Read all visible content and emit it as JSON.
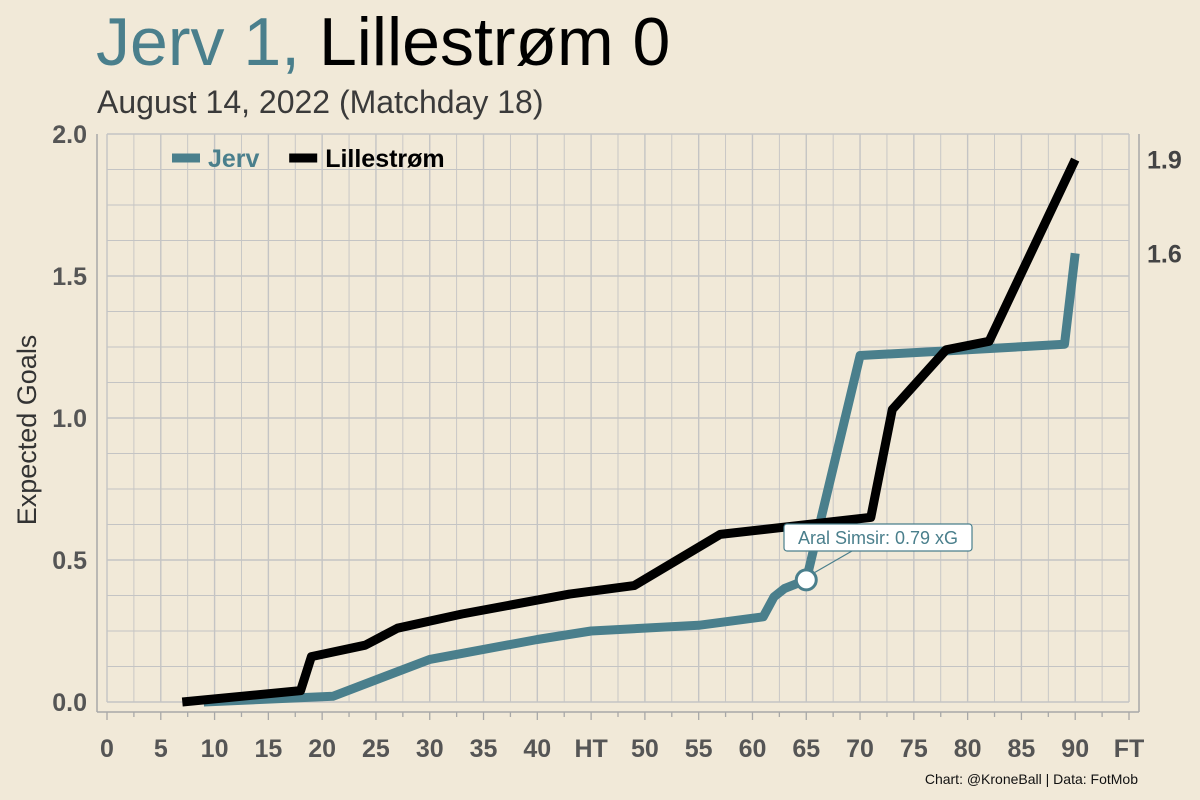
{
  "header": {
    "home_part": "Jerv 1,",
    "away_part": "Lillestrøm 0",
    "subtitle": "August 14, 2022 (Matchday 18)"
  },
  "caption": "Chart: @KroneBall | Data: FotMob",
  "colors": {
    "Jerv": "#4a7f8c",
    "Lillestrøm": "#000000",
    "background": "#f1e9d8",
    "grid": "#bdbdbd"
  },
  "chart_data": {
    "type": "line",
    "ylabel": "Expected Goals",
    "xlabel": "",
    "xlim": [
      0,
      95
    ],
    "ylim": [
      0,
      2.0
    ],
    "x_ticks": [
      {
        "x": 0,
        "label": "0"
      },
      {
        "x": 5,
        "label": "5"
      },
      {
        "x": 10,
        "label": "10"
      },
      {
        "x": 15,
        "label": "15"
      },
      {
        "x": 20,
        "label": "20"
      },
      {
        "x": 25,
        "label": "25"
      },
      {
        "x": 30,
        "label": "30"
      },
      {
        "x": 35,
        "label": "35"
      },
      {
        "x": 40,
        "label": "40"
      },
      {
        "x": 45,
        "label": "HT"
      },
      {
        "x": 50,
        "label": "50"
      },
      {
        "x": 55,
        "label": "55"
      },
      {
        "x": 60,
        "label": "60"
      },
      {
        "x": 65,
        "label": "65"
      },
      {
        "x": 70,
        "label": "70"
      },
      {
        "x": 75,
        "label": "75"
      },
      {
        "x": 80,
        "label": "80"
      },
      {
        "x": 85,
        "label": "85"
      },
      {
        "x": 90,
        "label": "90"
      },
      {
        "x": 95,
        "label": "FT"
      }
    ],
    "y_ticks": [
      "0.0",
      "0.5",
      "1.0",
      "1.5",
      "2.0"
    ],
    "legend": {
      "placement": "top-left",
      "entries": [
        "Jerv",
        "Lillestrøm"
      ]
    },
    "series": [
      {
        "name": "Jerv",
        "end_label": "1.6",
        "points": [
          [
            9,
            0.0
          ],
          [
            21,
            0.02
          ],
          [
            30,
            0.15
          ],
          [
            40,
            0.22
          ],
          [
            45,
            0.25
          ],
          [
            55,
            0.27
          ],
          [
            61,
            0.3
          ],
          [
            62,
            0.37
          ],
          [
            63,
            0.4
          ],
          [
            65,
            0.43
          ],
          [
            70,
            1.22
          ],
          [
            80,
            1.24
          ],
          [
            89,
            1.26
          ],
          [
            90,
            1.58
          ]
        ]
      },
      {
        "name": "Lillestrøm",
        "end_label": "1.9",
        "points": [
          [
            7,
            0.0
          ],
          [
            18,
            0.04
          ],
          [
            19,
            0.16
          ],
          [
            24,
            0.2
          ],
          [
            27,
            0.26
          ],
          [
            33,
            0.31
          ],
          [
            43,
            0.38
          ],
          [
            49,
            0.41
          ],
          [
            57,
            0.59
          ],
          [
            71,
            0.65
          ],
          [
            73,
            1.03
          ],
          [
            78,
            1.24
          ],
          [
            82,
            1.27
          ],
          [
            90,
            1.91
          ]
        ]
      }
    ],
    "annotation": {
      "text": "Aral Simsir: 0.79 xG",
      "series": "Jerv",
      "x": 65,
      "y": 0.43
    }
  }
}
